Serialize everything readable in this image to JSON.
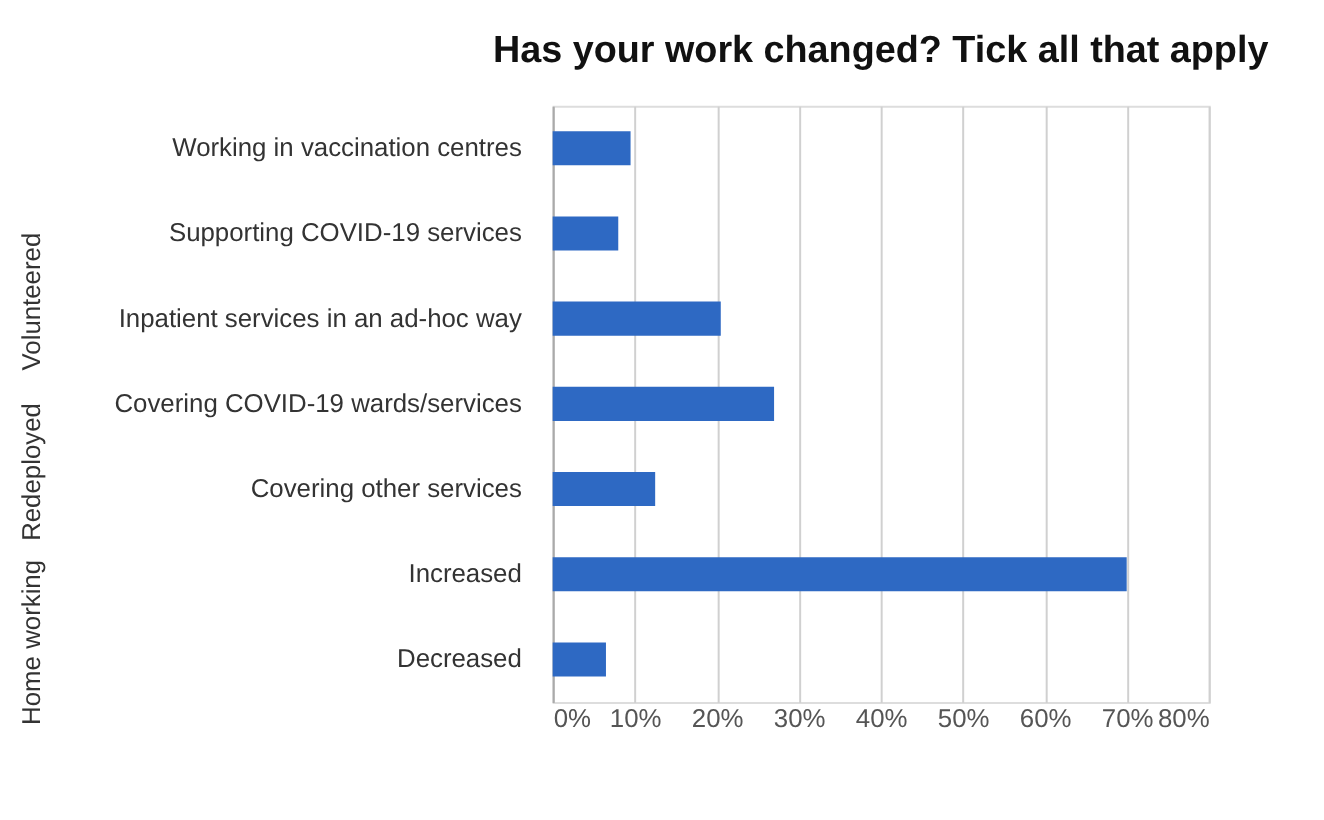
{
  "chart_data": {
    "type": "bar",
    "orientation": "horizontal",
    "title": "Has your work changed?  Tick all that apply",
    "categories": [
      "Working in vaccination centres",
      "Supporting COVID-19 services",
      "Inpatient services in an ad-hoc way",
      "Covering COVID-19 wards/services",
      "Covering other services",
      "Increased",
      "Decreased"
    ],
    "values": [
      9.5,
      8,
      20.5,
      27,
      12.5,
      70,
      6.5
    ],
    "color": "#2e69c3",
    "xlim": [
      0,
      80
    ],
    "xticks": [
      {
        "value": 0,
        "label": "0%"
      },
      {
        "value": 10,
        "label": "10%"
      },
      {
        "value": 20,
        "label": "20%"
      },
      {
        "value": 30,
        "label": "30%"
      },
      {
        "value": 40,
        "label": "40%"
      },
      {
        "value": 50,
        "label": "50%"
      },
      {
        "value": 60,
        "label": "60%"
      },
      {
        "value": 70,
        "label": "70%"
      },
      {
        "value": 80,
        "label": "80%"
      }
    ],
    "grid": "x",
    "annotations": [
      "Volunteered",
      "Redeployed",
      "Home working"
    ]
  }
}
